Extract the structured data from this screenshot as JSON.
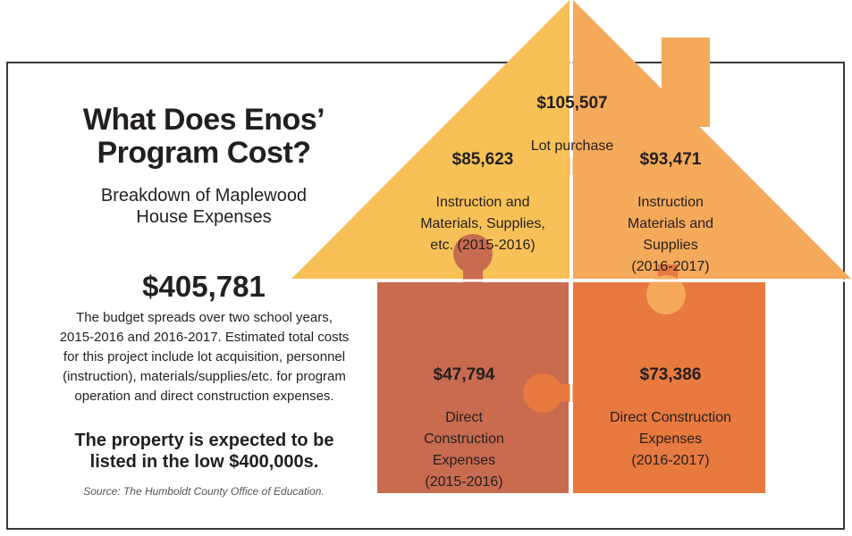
{
  "header": {
    "title": "What Does Enos’\nProgram Cost?",
    "subtitle": "Breakdown of Maplewood\nHouse Expenses"
  },
  "summary": {
    "total": "$405,781",
    "description": "The budget spreads over two school years,\n2015-2016 and 2016-2017. Estimated total costs\nfor this project include lot acquisition, personnel\n(instruction), materials/supplies/etc. for program\noperation and direct construction expenses.",
    "highlight": "The property is expected to be\nlisted in the low $400,000s.",
    "source": "Source: The Humboldt County Office of Education."
  },
  "pieces": {
    "lot": {
      "amount": "$105,507",
      "label": "Lot purchase",
      "color": "#f9c25a"
    },
    "instruction_2015": {
      "amount": "$85,623",
      "label": "Instruction and\nMaterials, Supplies,\netc. (2015-2016)",
      "color": "#f8c157"
    },
    "instruction_2016": {
      "amount": "$93,471",
      "label": "Instruction\nMaterials and\nSupplies\n(2016-2017)",
      "color": "#f5a95a"
    },
    "construction_2015": {
      "amount": "$47,794",
      "label": "Direct\nConstruction\nExpenses\n(2015-2016)",
      "color": "#c96b4f"
    },
    "construction_2016": {
      "amount": "$73,386",
      "label": "Direct Construction\nExpenses\n(2016-2017)",
      "color": "#e8793f"
    }
  }
}
